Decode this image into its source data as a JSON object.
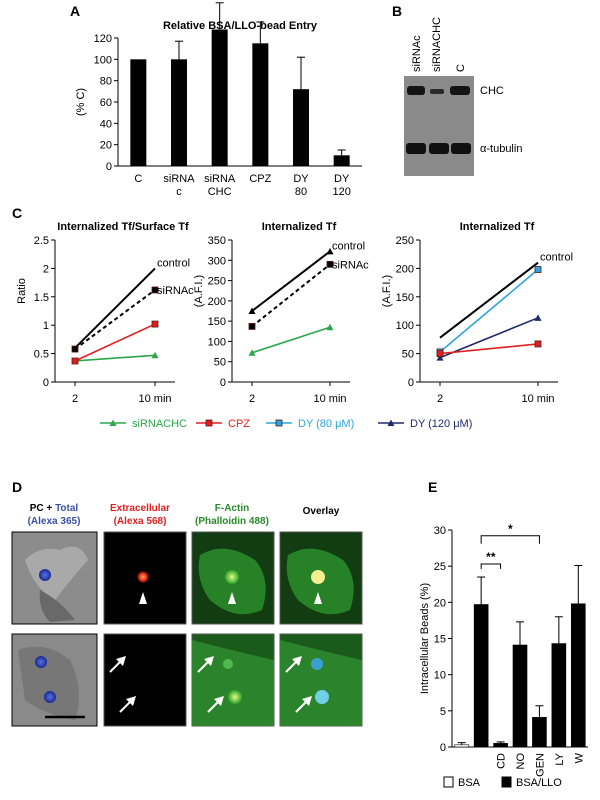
{
  "panels": {
    "A": {
      "letter": "A"
    },
    "B": {
      "letter": "B",
      "lanes": [
        "siRNAc",
        "siRNACHC",
        "C"
      ],
      "bands": [
        "CHC",
        "α-tubulin"
      ]
    },
    "C": {
      "letter": "C"
    },
    "D": {
      "letter": "D",
      "headers": [
        {
          "l1a": "PC + ",
          "l1b": "Total",
          "l2": "(Alexa 365)",
          "c1a": "#000000",
          "c1b": "#3a4fa8",
          "c2": "#3a4fa8"
        },
        {
          "l1a": "Extracellular",
          "l1b": "",
          "l2": "(Alexa 568)",
          "c1a": "#e02020",
          "c1b": "#e02020",
          "c2": "#e02020"
        },
        {
          "l1a": "F-Actin",
          "l1b": "",
          "l2": "(Phalloidin 488)",
          "c1a": "#2a8a2a",
          "c1b": "#2a8a2a",
          "c2": "#2a8a2a"
        },
        {
          "l1a": "Overlay",
          "l1b": "",
          "l2": "",
          "c1a": "#000000",
          "c1b": "#000000",
          "c2": "#000000"
        }
      ]
    },
    "E": {
      "letter": "E"
    }
  },
  "chart_data": [
    {
      "id": "A",
      "type": "bar",
      "title": "Relative BSA/LLO-bead Entry",
      "ylabel": "(% C)",
      "ylim": [
        0,
        120
      ],
      "yticks": [
        0,
        20,
        40,
        60,
        80,
        100,
        120
      ],
      "categories": [
        [
          "C"
        ],
        [
          "siRNA",
          "c"
        ],
        [
          "siRNA",
          "CHC"
        ],
        [
          "CPZ"
        ],
        [
          "DY",
          "80"
        ],
        [
          "DY",
          "120"
        ]
      ],
      "values": [
        100,
        100,
        128,
        115,
        72,
        10
      ],
      "errors": [
        0,
        17,
        25,
        20,
        30,
        5
      ],
      "color": "#000000"
    },
    {
      "id": "C1",
      "type": "line",
      "title": "Internalized Tf/Surface Tf",
      "ylabel": "Ratio",
      "ylim": [
        0,
        2.5
      ],
      "yticks": [
        0,
        0.5,
        1,
        1.5,
        2,
        2.5
      ],
      "ytick_labels": [
        "0",
        "0.5",
        "1",
        "1.5",
        "2",
        "2.5"
      ],
      "x": [
        "2",
        "10 min"
      ],
      "series": [
        {
          "name": "control",
          "values": [
            0.6,
            2.0
          ],
          "color": "#000000",
          "dash": "none",
          "marker": "none"
        },
        {
          "name": "siRNAc",
          "values": [
            0.58,
            1.62
          ],
          "color": "#000000",
          "dash": "4,3",
          "marker": "square"
        },
        {
          "name": "siRNACHC",
          "values": [
            0.37,
            0.47
          ],
          "color": "#2aa84a",
          "dash": "none",
          "marker": "triangle"
        },
        {
          "name": "CPZ",
          "values": [
            0.37,
            1.02
          ],
          "color": "#e02020",
          "dash": "none",
          "marker": "square"
        }
      ],
      "labels": [
        {
          "text": "control",
          "series": 0
        },
        {
          "text": "siRNAc",
          "series": 1
        }
      ]
    },
    {
      "id": "C2",
      "type": "line",
      "title": "Internalized Tf",
      "ylabel": "(A.F.I.)",
      "ylim": [
        0,
        350
      ],
      "yticks": [
        0,
        50,
        100,
        150,
        200,
        250,
        300,
        350
      ],
      "ytick_labels": [
        "0",
        "50",
        "100",
        "150",
        "200",
        "250",
        "300",
        "350"
      ],
      "x": [
        "2",
        "10 min"
      ],
      "series": [
        {
          "name": "control",
          "values": [
            175,
            322
          ],
          "color": "#000000",
          "dash": "none",
          "marker": "triangle"
        },
        {
          "name": "siRNAc",
          "values": [
            137,
            290
          ],
          "color": "#000000",
          "dash": "4,3",
          "marker": "square"
        },
        {
          "name": "siRNACHC",
          "values": [
            72,
            135
          ],
          "color": "#2aa84a",
          "dash": "none",
          "marker": "triangle"
        }
      ],
      "labels": [
        {
          "text": "control",
          "series": 0
        },
        {
          "text": "siRNAc",
          "series": 1
        }
      ]
    },
    {
      "id": "C3",
      "type": "line",
      "title": "Internalized Tf",
      "ylabel": "(A.F.I.)",
      "ylim": [
        0,
        250
      ],
      "yticks": [
        0,
        50,
        100,
        150,
        200,
        250
      ],
      "ytick_labels": [
        "0",
        "50",
        "100",
        "150",
        "200",
        "250"
      ],
      "x": [
        "2",
        "10 min"
      ],
      "series": [
        {
          "name": "control",
          "values": [
            78,
            210
          ],
          "color": "#000000",
          "dash": "none",
          "marker": "none"
        },
        {
          "name": "DY (80 μM)",
          "values": [
            53,
            198
          ],
          "color": "#29a6e0",
          "dash": "none",
          "marker": "square"
        },
        {
          "name": "DY (120 μM)",
          "values": [
            43,
            113
          ],
          "color": "#1f2a6a",
          "dash": "none",
          "marker": "triangle"
        },
        {
          "name": "CPZ",
          "values": [
            50,
            67
          ],
          "color": "#e02020",
          "dash": "none",
          "marker": "square"
        }
      ],
      "labels": [
        {
          "text": "control",
          "series": 0
        }
      ]
    },
    {
      "id": "E",
      "type": "bar",
      "ylabel": "Intracellular Beads (%)",
      "ylim": [
        0,
        30
      ],
      "yticks": [
        0,
        5,
        10,
        15,
        20,
        25,
        30
      ],
      "categories": [
        "",
        "",
        "CD",
        "NO",
        "GEN",
        "LY",
        "W"
      ],
      "values": [
        0.3,
        19.7,
        0.5,
        14.1,
        4.1,
        14.3,
        19.8
      ],
      "errors": [
        0.3,
        3.8,
        0.2,
        3.2,
        1.6,
        3.7,
        5.3
      ],
      "colors": [
        "#ffffff",
        "#000000",
        "#000000",
        "#000000",
        "#000000",
        "#000000",
        "#000000"
      ],
      "annotations": [
        {
          "text": "**",
          "from": 1,
          "to": 2
        },
        {
          "text": "*",
          "from": 1,
          "to": 4
        }
      ],
      "legend": [
        {
          "label": "BSA",
          "fill": "#ffffff"
        },
        {
          "label": "BSA/LLO",
          "fill": "#000000"
        }
      ]
    }
  ],
  "legendC": [
    {
      "label": "siRNACHC",
      "color": "#2aa84a",
      "marker": "triangle"
    },
    {
      "label": "CPZ",
      "color": "#e02020",
      "marker": "square"
    },
    {
      "label": "DY (80 μM)",
      "color": "#29a6e0",
      "marker": "square"
    },
    {
      "label": "DY (120 μM)",
      "color": "#1f2a6a",
      "marker": "triangle"
    }
  ]
}
